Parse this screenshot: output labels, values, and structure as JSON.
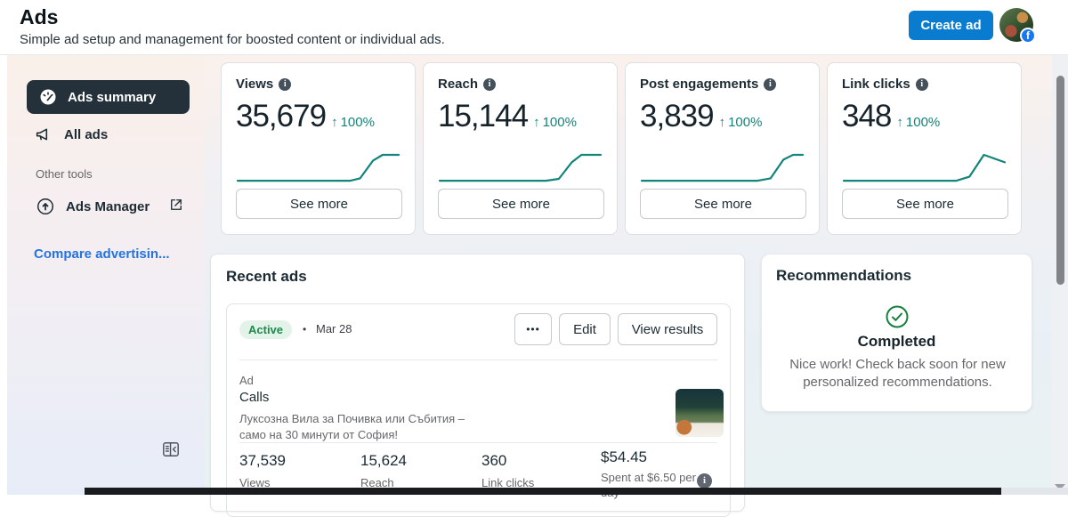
{
  "colors": {
    "accent_blue": "#0a7cd0",
    "link_blue": "#2374e1",
    "teal": "#12847a",
    "green_text": "#1e8a4c",
    "green_badge_bg": "#e4f3ea",
    "selected_dark": "#25313a",
    "check_green": "#15803d",
    "facebook_blue": "#1877f2"
  },
  "icons": {
    "info_glyph": "i",
    "arrow_up": "↑",
    "facebook_glyph": "f",
    "ellipsis": "•••",
    "separator": "•"
  },
  "header": {
    "title": "Ads",
    "subtitle": "Simple ad setup and management for boosted content or individual ads.",
    "create_ad_label": "Create ad"
  },
  "sidebar": {
    "ads_summary_label": "Ads summary",
    "all_ads_label": "All ads",
    "other_tools_label": "Other tools",
    "ads_manager_label": "Ads Manager",
    "compare_link_label": "Compare advertisin..."
  },
  "stat_cards": [
    {
      "title": "Views",
      "value": "35,679",
      "change": "100%",
      "see_more_label": "See more",
      "spark": [
        [
          0,
          0.03
        ],
        [
          0.7,
          0.03
        ],
        [
          0.76,
          0.12
        ],
        [
          0.84,
          0.78
        ],
        [
          0.9,
          1
        ],
        [
          1,
          1
        ]
      ]
    },
    {
      "title": "Reach",
      "value": "15,144",
      "change": "100%",
      "see_more_label": "See more",
      "spark": [
        [
          0,
          0.03
        ],
        [
          0.66,
          0.03
        ],
        [
          0.74,
          0.1
        ],
        [
          0.82,
          0.72
        ],
        [
          0.88,
          1
        ],
        [
          1,
          1
        ]
      ]
    },
    {
      "title": "Post engagements",
      "value": "3,839",
      "change": "100%",
      "see_more_label": "See more",
      "spark": [
        [
          0,
          0.03
        ],
        [
          0.72,
          0.03
        ],
        [
          0.8,
          0.12
        ],
        [
          0.88,
          0.82
        ],
        [
          0.94,
          1
        ],
        [
          1,
          1
        ]
      ]
    },
    {
      "title": "Link clicks",
      "value": "348",
      "change": "100%",
      "see_more_label": "See more",
      "spark": [
        [
          0,
          0.03
        ],
        [
          0.7,
          0.03
        ],
        [
          0.78,
          0.18
        ],
        [
          0.87,
          1
        ],
        [
          1,
          0.72
        ]
      ]
    }
  ],
  "recent_ads": {
    "title": "Recent ads",
    "status": "Active",
    "date": "Mar 28",
    "edit_label": "Edit",
    "view_results_label": "View results",
    "ad_type_label": "Ad",
    "ad_name": "Calls",
    "ad_description": "Луксозна Вила за Почивка или Събития – само на 30 минути от София!",
    "stats": [
      {
        "value": "37,539",
        "label": "Views"
      },
      {
        "value": "15,624",
        "label": "Reach"
      },
      {
        "value": "360",
        "label": "Link clicks"
      },
      {
        "value": "$54.45",
        "label": "Spent at $6.50 per day"
      }
    ]
  },
  "recommendations": {
    "title": "Recommendations",
    "status": "Completed",
    "message": "Nice work! Check back soon for new personalized recommendations."
  }
}
